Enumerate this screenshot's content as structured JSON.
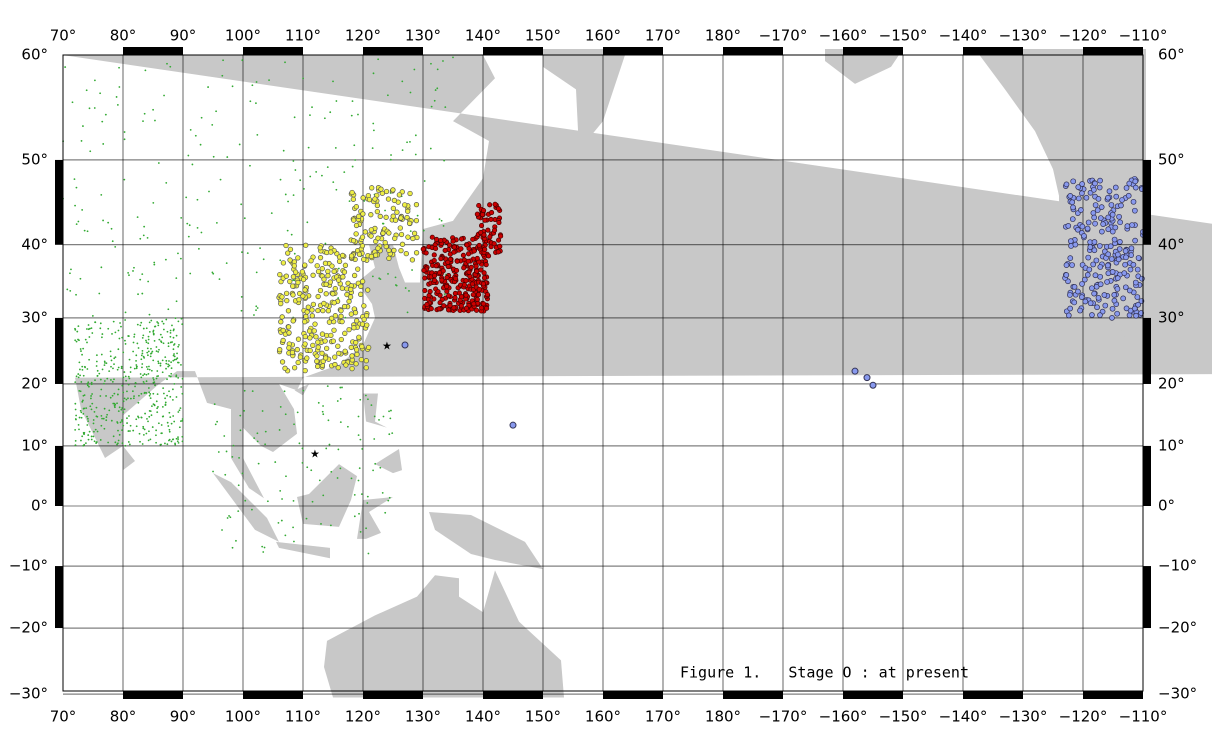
{
  "map": {
    "lon_ticks": [
      {
        "value": 70,
        "label": "70°"
      },
      {
        "value": 80,
        "label": "80°"
      },
      {
        "value": 90,
        "label": "90°"
      },
      {
        "value": 100,
        "label": "100°"
      },
      {
        "value": 110,
        "label": "110°"
      },
      {
        "value": 120,
        "label": "120°"
      },
      {
        "value": 130,
        "label": "130°"
      },
      {
        "value": 140,
        "label": "140°"
      },
      {
        "value": 150,
        "label": "150°"
      },
      {
        "value": 160,
        "label": "160°"
      },
      {
        "value": 170,
        "label": "170°"
      },
      {
        "value": 180,
        "label": "180°"
      },
      {
        "value": -170,
        "label": "−170°"
      },
      {
        "value": -160,
        "label": "−160°"
      },
      {
        "value": -150,
        "label": "−150°"
      },
      {
        "value": -140,
        "label": "−140°"
      },
      {
        "value": -130,
        "label": "−130°"
      },
      {
        "value": -120,
        "label": "−120°"
      },
      {
        "value": -110,
        "label": "−110°"
      }
    ],
    "lat_ticks": [
      {
        "value": 60,
        "label": "60°"
      },
      {
        "value": 50,
        "label": "50°"
      },
      {
        "value": 40,
        "label": "40°"
      },
      {
        "value": 30,
        "label": "30°"
      },
      {
        "value": 20,
        "label": "20°"
      },
      {
        "value": 10,
        "label": "10°"
      },
      {
        "value": 0,
        "label": "0°"
      },
      {
        "value": -10,
        "label": "−10°"
      },
      {
        "value": -20,
        "label": "−20°"
      },
      {
        "value": -30,
        "label": "−30°"
      }
    ],
    "caption": "Figure 1.   Stage O : at present"
  }
}
